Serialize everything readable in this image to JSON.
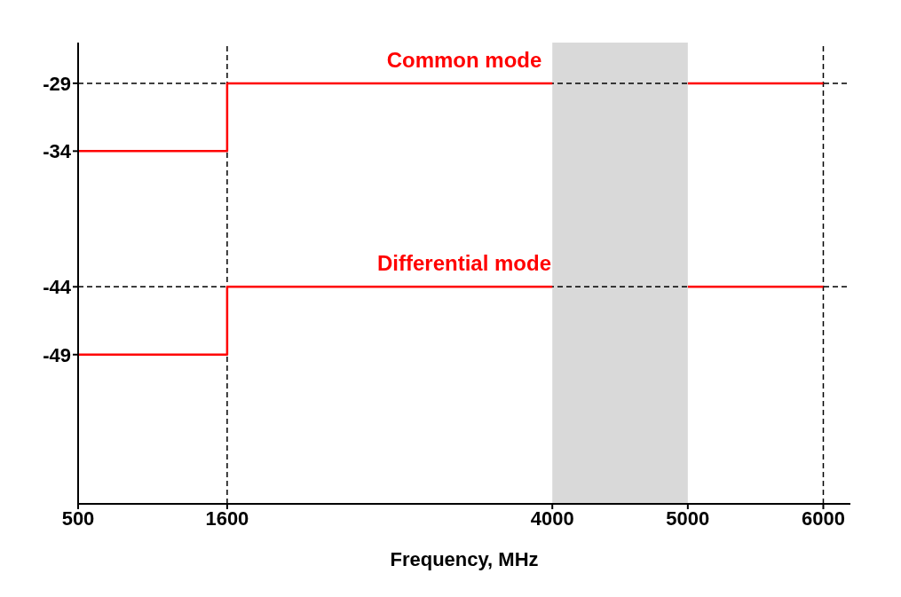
{
  "chart_data": {
    "type": "step",
    "xlabel": "Frequency, MHz",
    "series": [
      {
        "name": "Common mode",
        "color": "#ff0000",
        "x": [
          500,
          1600,
          4000
        ],
        "values": [
          -34,
          -29,
          -29
        ]
      },
      {
        "color": "#ff0000",
        "x": [
          5000,
          6000
        ],
        "values": [
          -29,
          -29
        ]
      },
      {
        "name": "Differential mode",
        "color": "#ff0000",
        "x": [
          500,
          1600,
          4000
        ],
        "values": [
          -49,
          -44,
          -44
        ]
      },
      {
        "color": "#ff0000",
        "x": [
          5000,
          6000
        ],
        "values": [
          -44,
          -44
        ]
      }
    ],
    "xlim": [
      500,
      6200
    ],
    "xticks": [
      500,
      1600,
      4000,
      5000,
      6000
    ],
    "ylim": [
      -60,
      -26
    ],
    "yticks": [
      -29,
      -34,
      -44,
      -49
    ],
    "ref_lines": [
      {
        "axis": "y",
        "value": -29,
        "color": "#000000",
        "line_style": "dashed"
      },
      {
        "axis": "y",
        "value": -44,
        "color": "#000000",
        "line_style": "dashed"
      },
      {
        "axis": "x",
        "value": 1600,
        "color": "#000000",
        "line_style": "dashed"
      },
      {
        "axis": "x",
        "value": 6000,
        "color": "#000000",
        "line_style": "dashed"
      }
    ],
    "bands": [
      {
        "axis": "x",
        "from": 4000,
        "to": 5000,
        "color": "#d9d9d9"
      }
    ],
    "grid": false,
    "line_style": "solid",
    "marker": "none"
  }
}
